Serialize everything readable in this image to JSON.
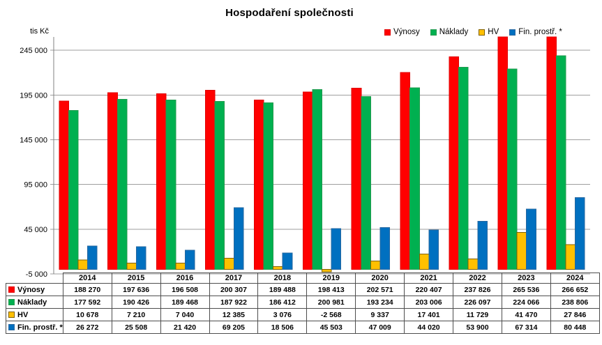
{
  "chart_data": {
    "type": "bar",
    "title": "Hospodaření společnosti",
    "ylabel": "tis Kč",
    "xlabel": "",
    "categories": [
      "2014",
      "2015",
      "2016",
      "2017",
      "2018",
      "2019",
      "2020",
      "2021",
      "2022",
      "2023",
      "2024"
    ],
    "series": [
      {
        "name": "Výnosy",
        "color": "#FF0000",
        "border_color": "#E00000",
        "values": [
          188270,
          197636,
          196508,
          200307,
          189488,
          198413,
          202571,
          220407,
          237826,
          265536,
          266652
        ]
      },
      {
        "name": "Náklady",
        "color": "#00B050",
        "border_color": "#209A4E",
        "values": [
          177592,
          190426,
          189468,
          187922,
          186412,
          200981,
          193234,
          203006,
          226097,
          224066,
          238806
        ]
      },
      {
        "name": "HV",
        "color": "#FFC000",
        "border_color": "#7F6000",
        "values": [
          10678,
          7210,
          7040,
          12385,
          3076,
          -2568,
          9337,
          17401,
          11729,
          41470,
          27846
        ]
      },
      {
        "name": "Fin. prostř. *",
        "color": "#0070C0",
        "border_color": "#2567A0",
        "values": [
          26272,
          25508,
          21420,
          69205,
          18506,
          45503,
          47009,
          44020,
          53900,
          67314,
          80448
        ]
      }
    ],
    "ylim": [
      -5000,
      260000
    ],
    "yticks": [
      {
        "value": 245000,
        "label": "245 000"
      },
      {
        "value": 195000,
        "label": "195 000"
      },
      {
        "value": 145000,
        "label": "145 000"
      },
      {
        "value": 95000,
        "label": "95 000"
      },
      {
        "value": 45000,
        "label": "45 000"
      },
      {
        "value": -5000,
        "label": "-5 000"
      }
    ],
    "grid": true,
    "legend_position": "top-right",
    "data_table_shown": true,
    "number_format": "space-thousands",
    "colors": {
      "gridline": "#9e9e9e",
      "axis": "#808080",
      "table_border": "#4d4d4d",
      "text": "#000000",
      "background": "#ffffff"
    }
  }
}
